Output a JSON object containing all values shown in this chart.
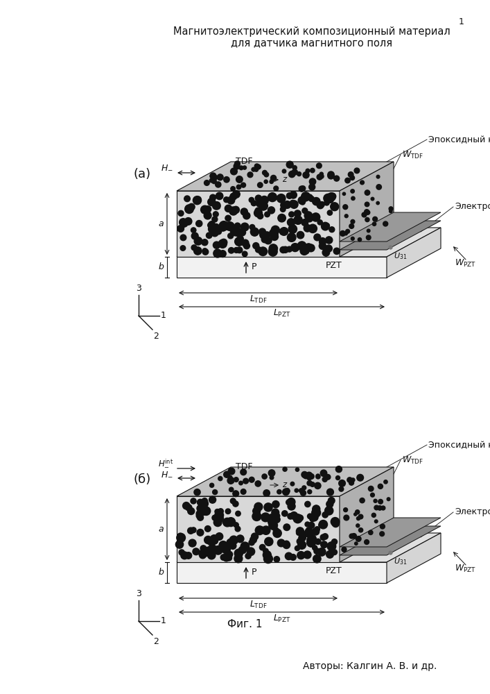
{
  "title_line1": "Магнитоэлектрический композиционный материал",
  "title_line2": "для датчика магнитного поля",
  "page_number": "1",
  "label_a_panel": "(а)",
  "label_b_panel": "(б)",
  "fig_caption": "Фиг. 1",
  "authors": "Авторы: Калгин А. В. и др.",
  "label_epoxy": "Эпоксидный компаунд",
  "label_electrodes": "Электроды",
  "bg_color": "#ffffff",
  "dot_color": "#111111",
  "line_color": "#111111",
  "pzt_face_color": "#f2f2f2",
  "pzt_top_color": "#e0e0e0",
  "pzt_right_color": "#d5d5d5",
  "tdf_face_color": "#d8d8d8",
  "tdf_top_color": "#c0c0c0",
  "tdf_right_color": "#b0b0b0",
  "elec_color": "#888888",
  "elec2_color": "#999999"
}
